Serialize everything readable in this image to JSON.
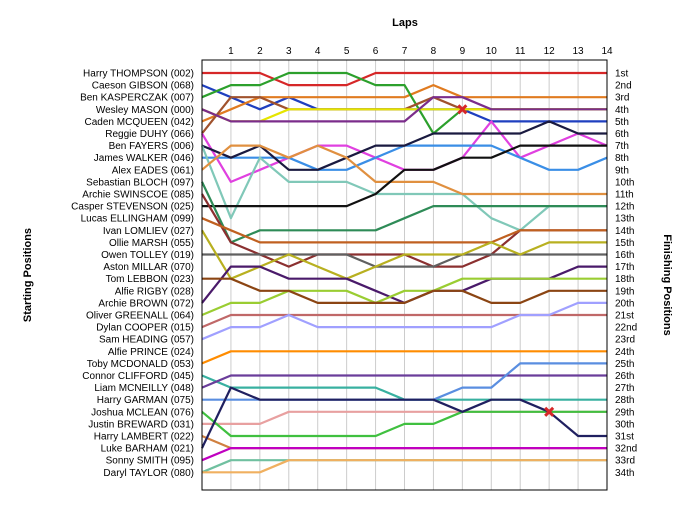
{
  "chart_data": {
    "type": "line",
    "title": "",
    "xlabel": "Laps",
    "ylabel_left": "Starting Positions",
    "ylabel_right": "Finishing Positions",
    "laps": [
      1,
      2,
      3,
      4,
      5,
      6,
      7,
      8,
      9,
      10,
      11,
      12,
      13,
      14
    ],
    "x_range": [
      0,
      14
    ],
    "y_range": [
      1,
      34
    ],
    "drivers": [
      "Harry THOMPSON (002)",
      "Caeson GIBSON (068)",
      "Ben KASPERCZAK (007)",
      "Wesley MASON (000)",
      "Caden MCQUEEN (042)",
      "Reggie DUHY (066)",
      "Ben FAYERS (006)",
      "James WALKER (046)",
      "Alex EADES (061)",
      "Sebastian BLOCH (097)",
      "Archie SWINSCOE (085)",
      "Casper STEVENSON (025)",
      "Lucas ELLINGHAM (099)",
      "Ivan LOMLIEV (027)",
      "Ollie MARSH (055)",
      "Owen TOLLEY (019)",
      "Aston MILLAR (070)",
      "Tom LEBBON (023)",
      "Alfie RIGBY (028)",
      "Archie BROWN (072)",
      "Oliver GREENALL (064)",
      "Dylan COOPER (015)",
      "Sam HEADING (057)",
      "Alfie PRINCE (024)",
      "Toby MCDONALD (053)",
      "Connor CLIFFORD (045)",
      "Liam MCNEILLY (048)",
      "Harry GARMAN (075)",
      "Joshua MCLEAN (076)",
      "Justin BREWARD (031)",
      "Harry LAMBERT (022)",
      "Luke BARHAM (021)",
      "Sonny SMITH (095)",
      "Daryl TAYLOR (080)"
    ],
    "finish_labels": [
      "1st",
      "2nd",
      "3rd",
      "4th",
      "5th",
      "6th",
      "7th",
      "8th",
      "9th",
      "10th",
      "11th",
      "12th",
      "13th",
      "14th",
      "15th",
      "16th",
      "17th",
      "18th",
      "19th",
      "20th",
      "21st",
      "22nd",
      "23rd",
      "24th",
      "25th",
      "26th",
      "27th",
      "28th",
      "29th",
      "30th",
      "31st",
      "32nd",
      "33rd",
      "34th"
    ],
    "series": [
      {
        "color": "#d62728",
        "positions": [
          1,
          1,
          1,
          2,
          2,
          2,
          1,
          1,
          1,
          1,
          1,
          1,
          1,
          1,
          1
        ]
      },
      {
        "color": "#1f3fbf",
        "positions": [
          2,
          3,
          4,
          3,
          4,
          4,
          4,
          4,
          4,
          4,
          5,
          5,
          5,
          5,
          5
        ]
      },
      {
        "color": "#e07b20",
        "positions": [
          5,
          4,
          3,
          3,
          3,
          3,
          3,
          3,
          2,
          3,
          3,
          3,
          3,
          3,
          3
        ]
      },
      {
        "color": "#2ca02c",
        "positions": [
          3,
          2,
          2,
          1,
          1,
          1,
          2,
          2,
          6,
          4,
          4,
          4,
          4,
          4,
          4
        ]
      },
      {
        "color": "#a0522d",
        "positions": [
          6,
          3,
          3,
          4,
          4,
          4,
          4,
          4,
          3,
          4,
          4,
          4,
          4,
          4,
          4
        ]
      },
      {
        "color": "#e5e500",
        "positions": [
          4,
          5,
          5,
          4,
          4,
          4,
          4,
          4,
          4,
          4,
          4,
          4,
          4,
          4,
          4
        ]
      },
      {
        "color": "#7b2d8b",
        "positions": [
          4,
          5,
          5,
          5,
          5,
          5,
          5,
          5,
          3,
          3,
          4,
          4,
          4,
          4,
          4
        ]
      },
      {
        "color": "#e040e0",
        "positions": [
          6,
          10,
          9,
          8,
          7,
          7,
          8,
          9,
          9,
          8,
          5,
          8,
          7,
          6,
          7
        ]
      },
      {
        "color": "#3a8ee6",
        "positions": [
          8,
          8,
          8,
          8,
          9,
          9,
          8,
          7,
          7,
          7,
          7,
          8,
          9,
          9,
          8
        ]
      },
      {
        "color": "#1a1a40",
        "positions": [
          7,
          8,
          7,
          9,
          9,
          8,
          7,
          7,
          6,
          6,
          6,
          6,
          5,
          6,
          6
        ]
      },
      {
        "color": "#80c8b8",
        "positions": [
          7,
          13,
          8,
          10,
          10,
          10,
          11,
          11,
          11,
          11,
          13,
          14,
          12,
          12,
          12
        ]
      },
      {
        "color": "#e09040",
        "positions": [
          9,
          7,
          7,
          8,
          7,
          8,
          10,
          10,
          10,
          11,
          11,
          11,
          11,
          11,
          11
        ]
      },
      {
        "color": "#111111",
        "positions": [
          12,
          12,
          12,
          12,
          12,
          12,
          11,
          9,
          9,
          8,
          8,
          7,
          7,
          7,
          7
        ]
      },
      {
        "color": "#2e8b57",
        "positions": [
          10,
          15,
          14,
          14,
          14,
          14,
          14,
          13,
          12,
          12,
          12,
          12,
          12,
          12,
          12
        ]
      },
      {
        "color": "#8b3030",
        "positions": [
          11,
          15,
          16,
          17,
          16,
          16,
          16,
          16,
          17,
          17,
          16,
          14,
          14,
          14,
          14
        ]
      },
      {
        "color": "#c06020",
        "positions": [
          13,
          14,
          15,
          15,
          15,
          15,
          15,
          15,
          15,
          15,
          15,
          14,
          14,
          14,
          14
        ]
      },
      {
        "color": "#606060",
        "positions": [
          16,
          16,
          16,
          16,
          16,
          16,
          17,
          17,
          17,
          16,
          16,
          16,
          16,
          16,
          16
        ]
      },
      {
        "color": "#b8b020",
        "positions": [
          14,
          18,
          17,
          16,
          17,
          18,
          17,
          16,
          16,
          16,
          15,
          16,
          15,
          15,
          15
        ]
      },
      {
        "color": "#4a1a6a",
        "positions": [
          20,
          17,
          17,
          18,
          18,
          18,
          19,
          20,
          19,
          19,
          18,
          18,
          18,
          17,
          17
        ]
      },
      {
        "color": "#9acd32",
        "positions": [
          21,
          20,
          20,
          19,
          19,
          19,
          20,
          19,
          19,
          18,
          18,
          18,
          18,
          18,
          18
        ]
      },
      {
        "color": "#8b4513",
        "positions": [
          18,
          18,
          19,
          19,
          20,
          20,
          20,
          20,
          19,
          19,
          20,
          20,
          19,
          19,
          19
        ]
      },
      {
        "color": "#c06868",
        "positions": [
          22,
          21,
          21,
          21,
          21,
          21,
          21,
          21,
          21,
          21,
          21,
          21,
          21,
          21,
          21
        ]
      },
      {
        "color": "#a0a0ff",
        "positions": [
          23,
          22,
          22,
          21,
          22,
          22,
          22,
          22,
          22,
          22,
          22,
          21,
          21,
          20,
          20
        ]
      },
      {
        "color": "#ff8c00",
        "positions": [
          25,
          24,
          24,
          24,
          24,
          24,
          24,
          24,
          24,
          24,
          24,
          24,
          24,
          24,
          24
        ]
      },
      {
        "color": "#38b0a0",
        "positions": [
          26,
          27,
          27,
          27,
          27,
          27,
          27,
          28,
          28,
          28,
          28,
          28,
          28,
          28,
          28
        ]
      },
      {
        "color": "#6a3d9a",
        "positions": [
          27,
          26,
          26,
          26,
          26,
          26,
          26,
          26,
          26,
          26,
          26,
          26,
          26,
          26,
          26
        ]
      },
      {
        "color": "#5a8ee0",
        "positions": [
          28,
          28,
          28,
          28,
          28,
          28,
          28,
          28,
          28,
          27,
          27,
          25,
          25,
          25,
          25
        ]
      },
      {
        "color": "#e8a0a0",
        "positions": [
          30,
          30,
          30,
          29,
          29,
          29,
          29,
          29,
          29,
          29,
          29,
          29,
          29,
          29,
          29
        ]
      },
      {
        "color": "#40c040",
        "positions": [
          29,
          31,
          31,
          31,
          31,
          31,
          31,
          30,
          30,
          29,
          29,
          29,
          29,
          29,
          29
        ]
      },
      {
        "color": "#d08040",
        "positions": [
          31,
          32,
          32,
          32,
          32,
          32,
          32,
          32,
          32,
          32,
          32,
          32,
          32,
          32,
          32
        ]
      },
      {
        "color": "#202060",
        "positions": [
          32,
          27,
          28,
          28,
          28,
          28,
          28,
          28,
          28,
          29,
          28,
          28,
          29,
          31,
          31
        ]
      },
      {
        "color": "#c000c0",
        "positions": [
          33,
          32,
          32,
          32,
          32,
          32,
          32,
          32,
          32,
          32,
          32,
          32,
          32,
          32,
          32
        ]
      },
      {
        "color": "#70c0a0",
        "positions": [
          34,
          33,
          33,
          33,
          33,
          33,
          33,
          33,
          33,
          33,
          33,
          33,
          33,
          33,
          33
        ]
      },
      {
        "color": "#f0b060",
        "positions": [
          34,
          34,
          34,
          33,
          33,
          33,
          33,
          33,
          33,
          33,
          33,
          33,
          33,
          33,
          33
        ]
      }
    ],
    "retirements": [
      {
        "lap": 9,
        "position": 4,
        "color": "#d62728"
      },
      {
        "lap": 12,
        "position": 29,
        "color": "#d62728"
      }
    ]
  }
}
